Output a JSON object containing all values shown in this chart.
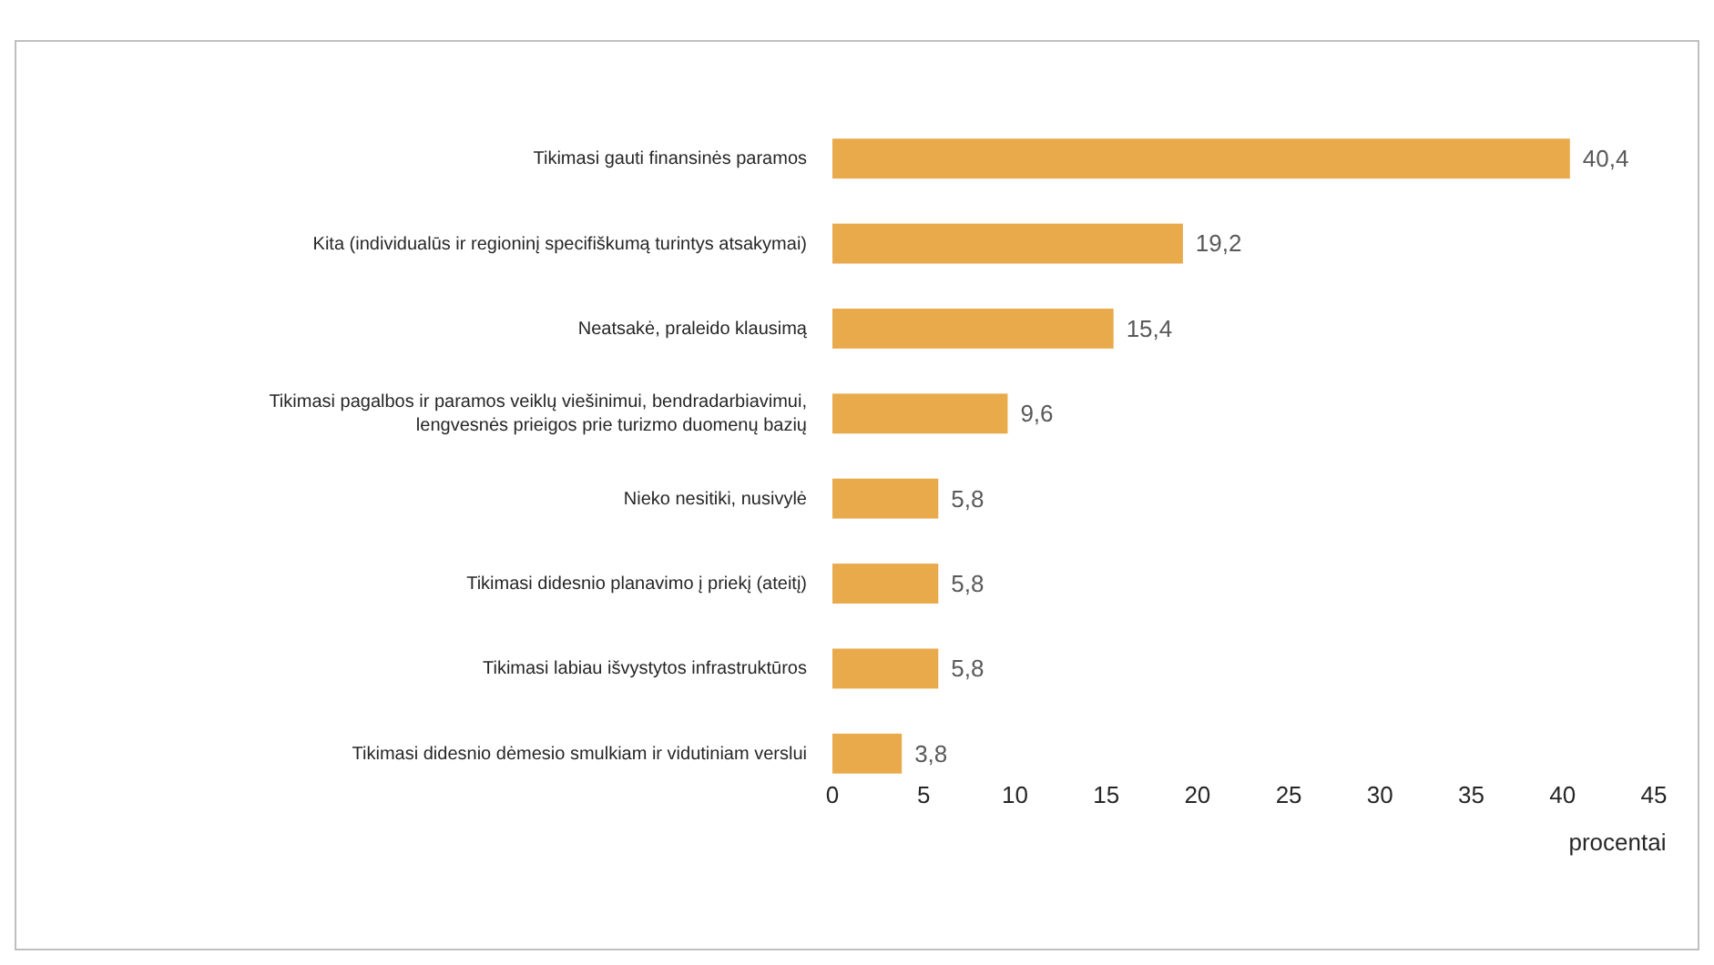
{
  "chart_data": {
    "type": "bar",
    "orientation": "horizontal",
    "xlabel": "procentai",
    "categories": [
      "Tikimasi gauti finansinės paramos",
      "Kita (individualūs ir regioninį specifiškumą turintys atsakymai)",
      "Neatsakė, praleido klausimą",
      "Tikimasi pagalbos ir paramos veiklų viešinimui, bendradarbiavimui, lengvesnės prieigos prie turizmo duomenų bazių",
      "Nieko nesitiki, nusivylė",
      "Tikimasi didesnio planavimo į priekį (ateitį)",
      "Tikimasi labiau išvystytos infrastruktūros",
      "Tikimasi didesnio dėmesio smulkiam ir vidutiniam verslui"
    ],
    "values": [
      40.4,
      19.2,
      15.4,
      9.6,
      5.8,
      5.8,
      5.8,
      3.8
    ],
    "value_labels": [
      "40,4",
      "19,2",
      "15,4",
      "9,6",
      "5,8",
      "5,8",
      "5,8",
      "3,8"
    ],
    "color": "#e9aa4b",
    "xlim": [
      0,
      45
    ],
    "xticks": [
      0,
      5,
      10,
      15,
      20,
      25,
      30,
      35,
      40,
      45
    ],
    "grid": false
  }
}
